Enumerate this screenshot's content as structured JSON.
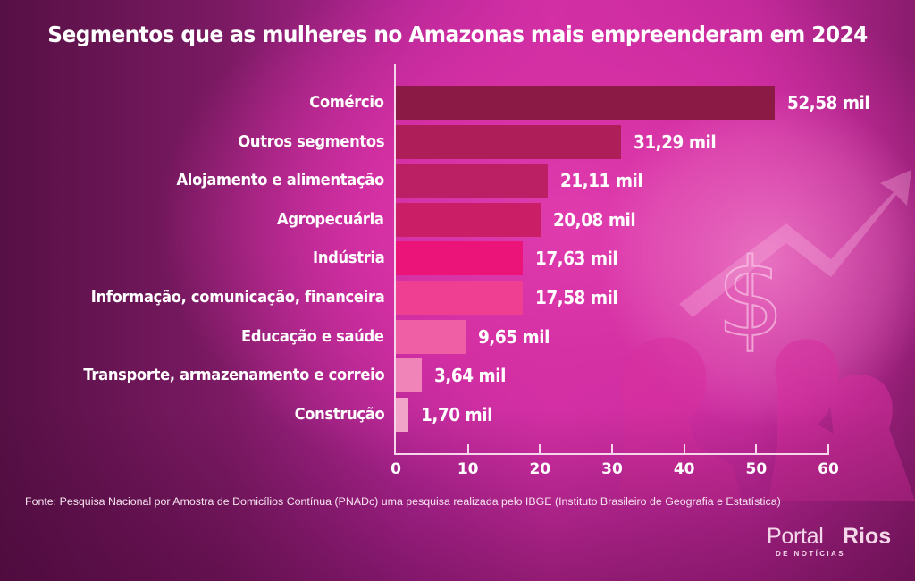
{
  "chart_data": {
    "type": "bar",
    "orientation": "horizontal",
    "title": "Segmentos que as mulheres no Amazonas mais empreenderam em 2024",
    "xlabel": "",
    "ylabel": "",
    "xlim": [
      0,
      60
    ],
    "grid": false,
    "categories": [
      "Comércio",
      "Outros segmentos",
      "Alojamento e alimentação",
      "Agropecuária",
      "Indústria",
      "Informação, comunicação, financeira",
      "Educação e saúde",
      "Transporte, armazenamento e correio",
      "Construção"
    ],
    "values": [
      52.58,
      31.29,
      21.11,
      20.08,
      17.63,
      17.58,
      9.65,
      3.64,
      1.7
    ],
    "value_labels": [
      "52,58 mil",
      "31,29 mil",
      "21,11 mil",
      "20,08 mil",
      "17,63 mil",
      "17,58 mil",
      "9,65 mil",
      "3,64 mil",
      "1,70 mil"
    ],
    "bar_colors": [
      "#8b1a44",
      "#ae1e58",
      "#bb2064",
      "#ca1e66",
      "#eb1479",
      "#ee3f93",
      "#ef5fa5",
      "#f084b8",
      "#f2a3c8"
    ],
    "x_ticks": [
      0,
      10,
      20,
      30,
      40,
      50,
      60
    ],
    "x_tick_labels": [
      "0",
      "10",
      "20",
      "30",
      "40",
      "50",
      "60"
    ]
  },
  "source": "Fonte:  Pesquisa Nacional por Amostra de Domicílios Contínua (PNADc) uma pesquisa realizada pelo IBGE (Instituto Brasileiro de Geografia e Estatística)",
  "logo": {
    "word1": "Portal",
    "word2": "Rios",
    "subtitle": "DE NOTÍCIAS"
  },
  "colors": {
    "axis": "#f6d6ea",
    "text": "#ffffff"
  }
}
